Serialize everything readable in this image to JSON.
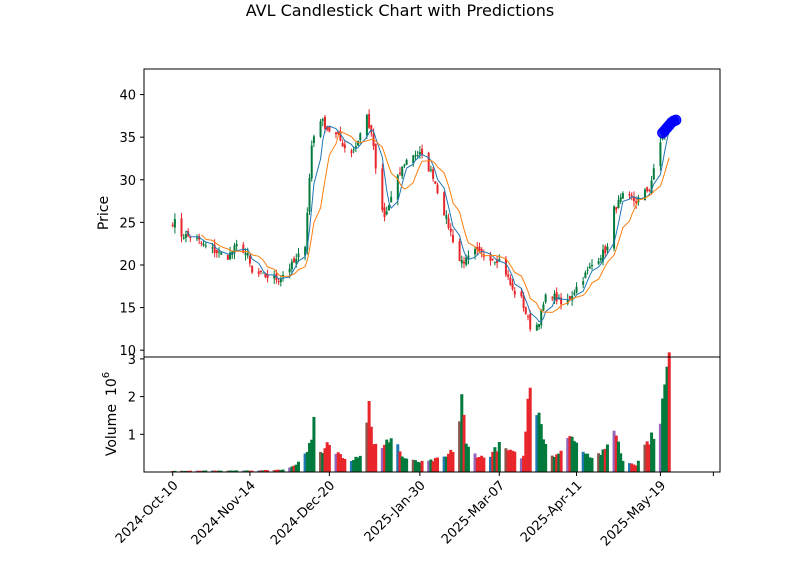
{
  "chart_data": {
    "type": "candlestick",
    "title": "AVL Candlestick Chart with Predictions",
    "price_panel": {
      "ylabel": "Price",
      "ylim": [
        9.2,
        43
      ],
      "yticks": [
        10,
        15,
        20,
        25,
        30,
        35,
        40
      ]
    },
    "volume_panel": {
      "ylabel": "Volume",
      "multiplier_label": "10",
      "multiplier_exp": "6",
      "ylim": [
        0,
        3.05
      ],
      "yticks": [
        1,
        2,
        3
      ],
      "ytick_labels": [
        "1",
        "2",
        "3"
      ]
    },
    "x_ticks": [
      {
        "label": "2024-Oct-10",
        "day": 0
      },
      {
        "label": "2024-Nov-14",
        "day": 35
      },
      {
        "label": "2024-Dec-20",
        "day": 71
      },
      {
        "label": "2025-Jan-30",
        "day": 112
      },
      {
        "label": "2025-Mar-07",
        "day": 148
      },
      {
        "label": "2025-Apr-11",
        "day": 183
      },
      {
        "label": "2025-May-19",
        "day": 221
      }
    ],
    "x_range_days": [
      -13,
      248
    ],
    "anchors": [
      [
        1,
        25
      ],
      [
        4,
        23.5
      ],
      [
        10,
        23.2
      ],
      [
        14,
        22.3
      ],
      [
        20,
        21.5
      ],
      [
        25,
        21
      ],
      [
        30,
        22.5
      ],
      [
        34,
        21
      ],
      [
        36,
        19
      ],
      [
        42,
        18.7
      ],
      [
        48,
        18.3
      ],
      [
        52,
        19.5
      ],
      [
        56,
        20.5
      ],
      [
        60,
        22.5
      ],
      [
        63,
        34
      ],
      [
        66,
        37.5
      ],
      [
        70,
        36
      ],
      [
        75,
        35
      ],
      [
        80,
        33
      ],
      [
        83,
        34
      ],
      [
        88,
        37.5
      ],
      [
        91,
        34
      ],
      [
        93,
        28
      ],
      [
        96,
        25.5
      ],
      [
        98,
        27
      ],
      [
        101,
        29.5
      ],
      [
        105,
        32
      ],
      [
        109,
        33
      ],
      [
        112,
        33
      ],
      [
        118,
        30.5
      ],
      [
        122,
        27
      ],
      [
        127,
        23
      ],
      [
        129,
        20.5
      ],
      [
        133,
        20.5
      ],
      [
        137,
        21.5
      ],
      [
        143,
        21
      ],
      [
        149,
        20.5
      ],
      [
        154,
        17
      ],
      [
        158,
        16
      ],
      [
        163,
        12
      ],
      [
        166,
        13.5
      ],
      [
        170,
        17
      ],
      [
        174,
        16
      ],
      [
        177,
        15
      ],
      [
        182,
        17
      ],
      [
        186,
        18.5
      ],
      [
        190,
        20
      ],
      [
        197,
        22
      ],
      [
        200,
        26.5
      ],
      [
        204,
        28
      ],
      [
        210,
        27.5
      ],
      [
        216,
        29
      ],
      [
        219,
        32
      ],
      [
        222,
        35.5
      ],
      [
        225,
        36.5
      ]
    ],
    "sma_short_window": 5,
    "sma_long_window": 10,
    "sma_short_color": "#1f77b4",
    "sma_long_color": "#ff7f0e",
    "up_color": "#007a3d",
    "down_color": "#e8262b",
    "prediction_color": "#0000ff",
    "volume_anchors": [
      [
        0,
        0.03
      ],
      [
        40,
        0.04
      ],
      [
        52,
        0.07
      ],
      [
        58,
        0.3
      ],
      [
        62,
        0.7
      ],
      [
        64,
        1.3
      ],
      [
        66,
        0.55
      ],
      [
        68,
        0.45
      ],
      [
        70,
        0.75
      ],
      [
        72,
        0.55
      ],
      [
        76,
        0.48
      ],
      [
        80,
        0.3
      ],
      [
        86,
        0.5
      ],
      [
        89,
        1.8
      ],
      [
        91,
        0.8
      ],
      [
        94,
        0.5
      ],
      [
        100,
        1.05
      ],
      [
        104,
        0.4
      ],
      [
        108,
        0.3
      ],
      [
        114,
        0.25
      ],
      [
        124,
        0.4
      ],
      [
        128,
        0.65
      ],
      [
        130,
        1.35
      ],
      [
        131,
        2.1
      ],
      [
        133,
        0.7
      ],
      [
        136,
        0.5
      ],
      [
        142,
        0.35
      ],
      [
        148,
        0.7
      ],
      [
        154,
        0.5
      ],
      [
        159,
        0.4
      ],
      [
        162,
        2.55
      ],
      [
        164,
        1.3
      ],
      [
        166,
        1.8
      ],
      [
        168,
        0.9
      ],
      [
        172,
        0.45
      ],
      [
        178,
        0.55
      ],
      [
        180,
        1.1
      ],
      [
        182,
        0.8
      ],
      [
        186,
        0.6
      ],
      [
        190,
        0.4
      ],
      [
        196,
        0.55
      ],
      [
        200,
        1.22
      ],
      [
        204,
        0.3
      ],
      [
        210,
        0.2
      ],
      [
        214,
        0.7
      ],
      [
        218,
        1.0
      ],
      [
        221,
        1.45
      ],
      [
        223,
        2.2
      ],
      [
        225,
        3.1
      ]
    ],
    "predictions": [
      {
        "day": 222,
        "value": 35.5
      },
      {
        "day": 223,
        "value": 35.8
      },
      {
        "day": 224,
        "value": 36.1
      },
      {
        "day": 225,
        "value": 36.4
      },
      {
        "day": 226,
        "value": 36.7
      },
      {
        "day": 227,
        "value": 36.9
      },
      {
        "day": 228,
        "value": 37.0
      }
    ]
  }
}
